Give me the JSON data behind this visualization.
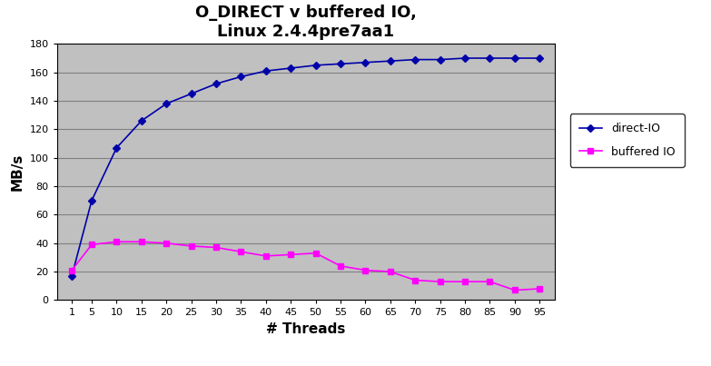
{
  "title": "O_DIRECT v buffered IO,\nLinux 2.4.4pre7aa1",
  "xlabel": "# Threads",
  "ylabel": "MB/s",
  "x_ticks": [
    1,
    5,
    10,
    15,
    20,
    25,
    30,
    35,
    40,
    45,
    50,
    55,
    60,
    65,
    70,
    75,
    80,
    85,
    90,
    95
  ],
  "direct_io_x": [
    1,
    5,
    10,
    15,
    20,
    25,
    30,
    35,
    40,
    45,
    50,
    55,
    60,
    65,
    70,
    75,
    80,
    85,
    90,
    95
  ],
  "direct_io_y": [
    17,
    70,
    107,
    126,
    138,
    145,
    152,
    157,
    161,
    163,
    165,
    166,
    167,
    168,
    169,
    169,
    170,
    170,
    170,
    170
  ],
  "buffered_io_x": [
    1,
    5,
    10,
    15,
    20,
    25,
    30,
    35,
    40,
    45,
    50,
    55,
    60,
    65,
    70,
    75,
    80,
    85,
    90,
    95
  ],
  "buffered_io_y": [
    21,
    39,
    41,
    41,
    40,
    38,
    37,
    34,
    31,
    32,
    33,
    24,
    21,
    20,
    14,
    13,
    13,
    13,
    7,
    8
  ],
  "direct_io_color": "#0000aa",
  "buffered_io_color": "#ff00ff",
  "fig_bg_color": "#ffffff",
  "plot_bg_color": "#c0c0c0",
  "ylim": [
    0,
    180
  ],
  "yticks": [
    0,
    20,
    40,
    60,
    80,
    100,
    120,
    140,
    160,
    180
  ],
  "grid_color": "#808080",
  "legend_direct": "direct-IO",
  "legend_buffered": "buffered IO",
  "title_fontsize": 13,
  "axis_label_fontsize": 11,
  "tick_fontsize": 8
}
